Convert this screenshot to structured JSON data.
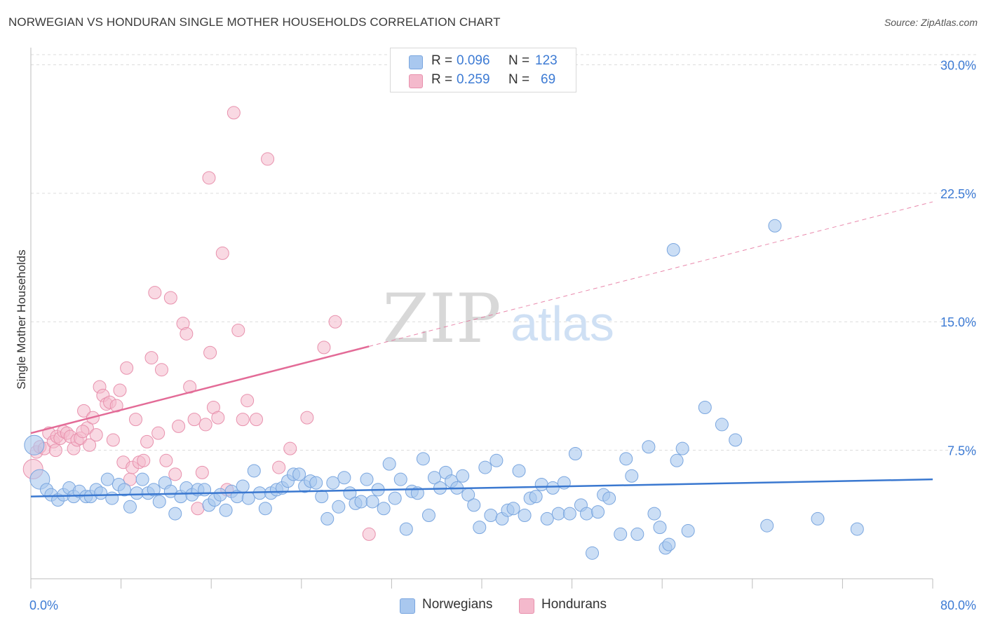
{
  "title": "NORWEGIAN VS HONDURAN SINGLE MOTHER HOUSEHOLDS CORRELATION CHART",
  "source": "Source: ZipAtlas.com",
  "watermark": {
    "zip": "ZIP",
    "atlas": "atlas"
  },
  "colors": {
    "blue_fill": "#a9c8ef",
    "blue_stroke": "#7aa6df",
    "blue_line": "#3a78d0",
    "pink_fill": "#f4b9cc",
    "pink_stroke": "#e891ad",
    "pink_line": "#e36b97",
    "axis_text": "#3d7bd4"
  },
  "legend": {
    "rows": [
      {
        "r_label": "R =",
        "r_value": "0.096",
        "n_label": "N =",
        "n_value": "123"
      },
      {
        "r_label": "R =",
        "r_value": "0.259",
        "n_label": "N =",
        "n_value": "69"
      }
    ]
  },
  "bottom_legend": {
    "items": [
      "Norwegians",
      "Hondurans"
    ]
  },
  "chart_data": {
    "type": "scatter",
    "title": "NORWEGIAN VS HONDURAN SINGLE MOTHER HOUSEHOLDS CORRELATION CHART",
    "xlabel": "",
    "ylabel": "Single Mother Households",
    "xlim": [
      0,
      80
    ],
    "ylim": [
      0,
      31
    ],
    "x_tick_labels": [
      "0.0%",
      "80.0%"
    ],
    "y_ticks": [
      7.5,
      15.0,
      22.5,
      30.0
    ],
    "y_tick_labels": [
      "7.5%",
      "15.0%",
      "22.5%",
      "30.0%"
    ],
    "grid": true,
    "series": [
      {
        "name": "Norwegians",
        "R": 0.096,
        "N": 123,
        "trend": {
          "x": [
            0,
            80
          ],
          "y": [
            4.8,
            5.8
          ],
          "dashed_after": null
        },
        "points": [
          [
            0.3,
            7.8
          ],
          [
            0.8,
            5.8
          ],
          [
            1.4,
            5.2
          ],
          [
            1.8,
            4.9
          ],
          [
            2.4,
            4.6
          ],
          [
            2.9,
            4.9
          ],
          [
            3.4,
            5.3
          ],
          [
            3.8,
            4.8
          ],
          [
            4.3,
            5.1
          ],
          [
            4.9,
            4.8
          ],
          [
            5.3,
            4.8
          ],
          [
            5.8,
            5.2
          ],
          [
            6.2,
            5.0
          ],
          [
            6.8,
            5.8
          ],
          [
            7.2,
            4.7
          ],
          [
            7.8,
            5.5
          ],
          [
            8.3,
            5.2
          ],
          [
            8.8,
            4.2
          ],
          [
            9.4,
            5.0
          ],
          [
            9.9,
            5.8
          ],
          [
            10.4,
            5.0
          ],
          [
            10.9,
            5.2
          ],
          [
            11.4,
            4.5
          ],
          [
            11.9,
            5.6
          ],
          [
            12.4,
            5.1
          ],
          [
            12.8,
            3.8
          ],
          [
            13.3,
            4.8
          ],
          [
            13.8,
            5.3
          ],
          [
            14.3,
            4.9
          ],
          [
            14.8,
            5.2
          ],
          [
            15.4,
            5.2
          ],
          [
            15.8,
            4.3
          ],
          [
            16.3,
            4.6
          ],
          [
            16.8,
            4.9
          ],
          [
            17.3,
            4.0
          ],
          [
            17.8,
            5.1
          ],
          [
            18.3,
            4.8
          ],
          [
            18.8,
            5.4
          ],
          [
            19.3,
            4.7
          ],
          [
            19.8,
            6.3
          ],
          [
            20.3,
            5.0
          ],
          [
            20.8,
            4.1
          ],
          [
            21.3,
            5.0
          ],
          [
            21.8,
            5.2
          ],
          [
            22.3,
            5.3
          ],
          [
            22.8,
            5.7
          ],
          [
            23.3,
            6.1
          ],
          [
            23.8,
            6.1
          ],
          [
            24.3,
            5.4
          ],
          [
            24.8,
            5.7
          ],
          [
            25.3,
            5.6
          ],
          [
            25.8,
            4.8
          ],
          [
            26.3,
            3.5
          ],
          [
            26.8,
            5.6
          ],
          [
            27.3,
            4.2
          ],
          [
            27.8,
            5.9
          ],
          [
            28.3,
            5.0
          ],
          [
            28.8,
            4.4
          ],
          [
            29.3,
            4.5
          ],
          [
            29.8,
            5.8
          ],
          [
            30.3,
            4.5
          ],
          [
            30.8,
            5.2
          ],
          [
            31.3,
            4.1
          ],
          [
            31.8,
            6.7
          ],
          [
            32.3,
            4.7
          ],
          [
            32.8,
            5.8
          ],
          [
            33.3,
            2.9
          ],
          [
            33.8,
            5.1
          ],
          [
            34.3,
            5.0
          ],
          [
            34.8,
            7.0
          ],
          [
            35.3,
            3.7
          ],
          [
            35.8,
            5.9
          ],
          [
            36.3,
            5.3
          ],
          [
            36.8,
            6.2
          ],
          [
            37.3,
            5.7
          ],
          [
            37.8,
            5.3
          ],
          [
            38.3,
            6.0
          ],
          [
            38.8,
            4.9
          ],
          [
            39.3,
            4.3
          ],
          [
            39.8,
            3.0
          ],
          [
            40.3,
            6.5
          ],
          [
            40.8,
            3.7
          ],
          [
            41.3,
            6.9
          ],
          [
            41.8,
            3.5
          ],
          [
            42.3,
            4.0
          ],
          [
            42.8,
            4.1
          ],
          [
            43.3,
            6.3
          ],
          [
            43.8,
            3.7
          ],
          [
            44.3,
            4.7
          ],
          [
            44.8,
            4.8
          ],
          [
            45.3,
            5.5
          ],
          [
            45.8,
            3.5
          ],
          [
            46.3,
            5.3
          ],
          [
            46.8,
            3.8
          ],
          [
            47.3,
            5.6
          ],
          [
            47.8,
            3.8
          ],
          [
            48.3,
            7.3
          ],
          [
            48.8,
            4.3
          ],
          [
            49.3,
            3.8
          ],
          [
            49.8,
            1.5
          ],
          [
            50.3,
            3.9
          ],
          [
            50.8,
            4.9
          ],
          [
            51.3,
            4.7
          ],
          [
            52.3,
            2.6
          ],
          [
            52.8,
            7.0
          ],
          [
            53.3,
            6.0
          ],
          [
            53.8,
            2.6
          ],
          [
            54.8,
            7.7
          ],
          [
            55.3,
            3.8
          ],
          [
            55.8,
            3.0
          ],
          [
            56.3,
            1.8
          ],
          [
            56.6,
            2.0
          ],
          [
            57.3,
            6.9
          ],
          [
            57.8,
            7.6
          ],
          [
            58.3,
            2.8
          ],
          [
            59.8,
            10.0
          ],
          [
            61.3,
            9.0
          ],
          [
            62.5,
            8.1
          ],
          [
            65.3,
            3.1
          ],
          [
            69.8,
            3.5
          ],
          [
            73.3,
            2.9
          ],
          [
            57.0,
            19.2
          ],
          [
            66.0,
            20.6
          ]
        ]
      },
      {
        "name": "Hondurans",
        "R": 0.259,
        "N": 69,
        "trend": {
          "x": [
            0,
            80
          ],
          "y": [
            8.5,
            22.0
          ],
          "dashed_after": 30
        },
        "points": [
          [
            0.2,
            6.4
          ],
          [
            0.5,
            7.4
          ],
          [
            0.8,
            7.7
          ],
          [
            1.2,
            7.6
          ],
          [
            1.6,
            8.5
          ],
          [
            2.0,
            8.0
          ],
          [
            2.3,
            8.3
          ],
          [
            2.6,
            8.2
          ],
          [
            2.9,
            8.6
          ],
          [
            3.2,
            8.5
          ],
          [
            3.5,
            8.3
          ],
          [
            3.8,
            7.6
          ],
          [
            4.1,
            8.1
          ],
          [
            4.4,
            8.2
          ],
          [
            4.7,
            9.8
          ],
          [
            5.0,
            8.8
          ],
          [
            5.2,
            7.8
          ],
          [
            5.5,
            9.4
          ],
          [
            5.8,
            8.4
          ],
          [
            6.1,
            11.2
          ],
          [
            6.4,
            10.7
          ],
          [
            6.7,
            10.2
          ],
          [
            7.0,
            10.3
          ],
          [
            7.3,
            8.1
          ],
          [
            7.6,
            10.1
          ],
          [
            7.9,
            11.0
          ],
          [
            8.2,
            6.8
          ],
          [
            8.5,
            12.3
          ],
          [
            8.8,
            5.8
          ],
          [
            9.0,
            6.5
          ],
          [
            9.3,
            9.3
          ],
          [
            9.6,
            6.8
          ],
          [
            10.0,
            6.9
          ],
          [
            10.3,
            8.0
          ],
          [
            10.7,
            12.9
          ],
          [
            11.0,
            16.7
          ],
          [
            11.3,
            8.5
          ],
          [
            11.6,
            12.2
          ],
          [
            12.0,
            6.9
          ],
          [
            12.4,
            16.4
          ],
          [
            12.8,
            6.1
          ],
          [
            13.1,
            8.9
          ],
          [
            13.5,
            14.9
          ],
          [
            13.8,
            14.3
          ],
          [
            14.1,
            11.2
          ],
          [
            14.5,
            9.3
          ],
          [
            14.8,
            4.1
          ],
          [
            15.2,
            6.2
          ],
          [
            15.5,
            9.0
          ],
          [
            15.9,
            13.2
          ],
          [
            16.2,
            10.0
          ],
          [
            16.6,
            9.4
          ],
          [
            17.0,
            19.0
          ],
          [
            17.4,
            5.2
          ],
          [
            18.0,
            27.2
          ],
          [
            18.4,
            14.5
          ],
          [
            18.8,
            9.3
          ],
          [
            19.2,
            10.4
          ],
          [
            20.0,
            9.3
          ],
          [
            21.0,
            24.5
          ],
          [
            22.0,
            6.5
          ],
          [
            23.0,
            7.6
          ],
          [
            24.5,
            9.4
          ],
          [
            26.0,
            13.5
          ],
          [
            27.0,
            15.0
          ],
          [
            30.0,
            2.6
          ],
          [
            15.8,
            23.4
          ],
          [
            4.6,
            8.6
          ],
          [
            2.2,
            7.5
          ]
        ]
      }
    ]
  }
}
